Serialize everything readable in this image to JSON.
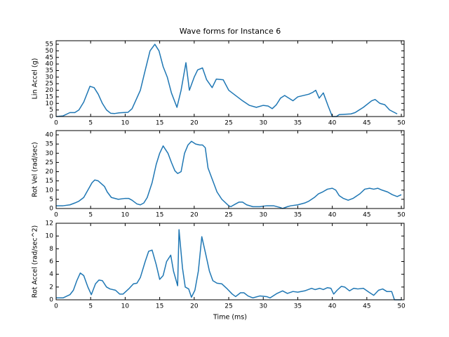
{
  "chart_data": [
    {
      "type": "line",
      "title": "Wave forms for Instance 6",
      "ylabel": "Lin Accel (g)",
      "color": "#1f77b4",
      "x": [
        0,
        1,
        2,
        2.7,
        3.3,
        4,
        4.9,
        5.5,
        6.1,
        6.7,
        7.3,
        7.9,
        8.5,
        9.1,
        9.7,
        10.4,
        11,
        12.2,
        12.8,
        13.6,
        14.3,
        14.9,
        15.5,
        16.1,
        16.7,
        17.5,
        18.1,
        18.8,
        19.3,
        20,
        20.5,
        21.2,
        21.8,
        22.6,
        23.2,
        24.2,
        25,
        26,
        27,
        28,
        29,
        30,
        30.7,
        31.3,
        31.9,
        32.5,
        33.1,
        33.7,
        34.3,
        35,
        35.8,
        36.6,
        37.2,
        37.6,
        38.1,
        38.7,
        39.4,
        40,
        40.6,
        41,
        42.7,
        43.3,
        44.5,
        45.7,
        46.2,
        46.9,
        47.6,
        48.3,
        49.4
      ],
      "values": [
        0,
        0.5,
        3,
        3,
        5,
        11,
        23,
        22,
        17,
        10,
        5,
        2.5,
        2.3,
        2.8,
        3,
        3.2,
        6,
        20,
        33,
        50,
        55,
        50,
        38,
        30,
        18,
        7,
        20,
        41,
        20,
        30,
        35.5,
        37,
        28,
        22,
        28.5,
        28,
        20,
        16,
        12,
        8.5,
        7,
        8.5,
        8,
        6,
        9,
        14,
        16,
        14,
        12,
        15,
        16,
        17,
        18.5,
        20,
        14,
        18,
        8,
        0,
        0,
        1.5,
        2,
        3,
        7,
        12,
        13,
        10,
        9,
        5,
        2
      ],
      "xlim": [
        0,
        50.4
      ],
      "ylim": [
        0,
        57.7
      ],
      "xticks": [
        0,
        5,
        10,
        15,
        20,
        25,
        30,
        35,
        40,
        45,
        50
      ],
      "yticks": [
        0,
        5,
        10,
        15,
        20,
        25,
        30,
        35,
        40,
        45,
        50,
        55
      ]
    },
    {
      "type": "line",
      "ylabel": "Rot Vel (rad/sec)",
      "color": "#1f77b4",
      "x": [
        0,
        1,
        2,
        2.7,
        3.3,
        4,
        4.6,
        5.2,
        5.6,
        6.1,
        7,
        7.4,
        8,
        9,
        10,
        10.5,
        11,
        11.7,
        12.2,
        12.7,
        13.2,
        13.9,
        14.5,
        15,
        15.5,
        16.2,
        16.7,
        17.2,
        17.6,
        18.1,
        18.6,
        19.1,
        19.6,
        20.2,
        20.8,
        21.2,
        21.6,
        22,
        22.7,
        23.3,
        24,
        25,
        25.3,
        26,
        26.5,
        27,
        27.6,
        28.5,
        29.5,
        30.5,
        31.5,
        32.5,
        32.8,
        33.5,
        34,
        35,
        36,
        36.6,
        37.4,
        38,
        38.6,
        39.3,
        40,
        40.5,
        41,
        41.6,
        42.3,
        43,
        44,
        44.7,
        45.4,
        46,
        46.6,
        47.2,
        48,
        48.7,
        49.4,
        50
      ],
      "values": [
        1.5,
        1.5,
        2,
        3,
        4,
        6,
        10,
        14,
        15.5,
        15,
        12,
        9,
        6,
        5,
        5.5,
        5.5,
        4.5,
        2.5,
        2,
        3,
        6,
        14,
        24,
        30,
        34,
        30,
        25,
        20.5,
        19,
        20,
        30,
        34.5,
        36.5,
        35,
        34.5,
        34.5,
        33,
        22,
        15,
        9,
        5,
        1.5,
        1,
        2.5,
        3.5,
        3.5,
        2,
        1,
        1,
        1.5,
        1.5,
        0.5,
        0,
        1,
        1.5,
        2,
        3,
        4,
        6,
        8,
        9,
        10.5,
        11,
        10,
        7,
        5.5,
        4.5,
        5.5,
        8,
        10.5,
        11,
        10.5,
        11,
        10,
        9,
        7.5,
        6.5,
        7.5
      ],
      "xlim": [
        0,
        50.4
      ],
      "ylim": [
        0,
        42.3
      ],
      "xticks": [
        0,
        5,
        10,
        15,
        20,
        25,
        30,
        35,
        40,
        45,
        50
      ],
      "yticks": [
        0,
        5,
        10,
        15,
        20,
        25,
        30,
        35,
        40
      ]
    },
    {
      "type": "line",
      "ylabel": "Rot Accel (rad/sec^2)",
      "xlabel": "Time (ms)",
      "color": "#1f77b4",
      "x": [
        0,
        1,
        2,
        2.5,
        3,
        3.5,
        4,
        4.6,
        5.1,
        5.7,
        6.2,
        6.7,
        7.3,
        7.8,
        8.6,
        9.2,
        9.7,
        10.6,
        11.2,
        11.7,
        12.2,
        12.9,
        13.4,
        13.9,
        14.5,
        15,
        15.5,
        16,
        16.6,
        17,
        17.6,
        17.8,
        18.3,
        18.7,
        19.2,
        19.6,
        20.1,
        20.6,
        21.1,
        21.7,
        22.2,
        22.7,
        23.3,
        24,
        24.7,
        25.5,
        26,
        26.7,
        27.2,
        27.8,
        28.5,
        29.5,
        30.5,
        31,
        32,
        32.8,
        33.5,
        34.3,
        35,
        36,
        37,
        37.5,
        38.2,
        38.7,
        39.3,
        39.8,
        40.2,
        40.7,
        41.3,
        41.8,
        42.5,
        43.1,
        43.7,
        44.5,
        45.3,
        46,
        46.7,
        47.3,
        47.9,
        48.6,
        49,
        50
      ],
      "values": [
        0.3,
        0.3,
        0.8,
        1.5,
        3,
        4.2,
        3.8,
        2,
        0.8,
        2.5,
        3.1,
        3,
        2,
        1.7,
        1.5,
        0.9,
        0.9,
        1.8,
        2.5,
        2.6,
        3.5,
        6,
        7.6,
        7.8,
        5.5,
        3.2,
        3.8,
        6,
        7,
        4.5,
        2.2,
        11,
        5,
        2,
        1.7,
        0.4,
        1.5,
        4.5,
        9.9,
        7,
        4.5,
        3,
        2.6,
        2.5,
        1.8,
        0.9,
        0.5,
        1.1,
        1.1,
        0.6,
        0.3,
        0.6,
        0.5,
        0.3,
        1,
        1.4,
        1,
        1.3,
        1.2,
        1.4,
        1.8,
        1.6,
        1.8,
        1.6,
        1.9,
        1.8,
        0.9,
        1.5,
        2.1,
        2,
        1.4,
        1.8,
        1.7,
        1.8,
        1.2,
        0.7,
        1.5,
        1.7,
        1.3,
        1.3,
        0,
        0
      ],
      "xlim": [
        0,
        50.4
      ],
      "ylim": [
        0,
        12
      ],
      "xticks": [
        0,
        5,
        10,
        15,
        20,
        25,
        30,
        35,
        40,
        45,
        50
      ],
      "yticks": [
        0,
        2,
        4,
        6,
        8,
        10,
        12
      ]
    }
  ]
}
